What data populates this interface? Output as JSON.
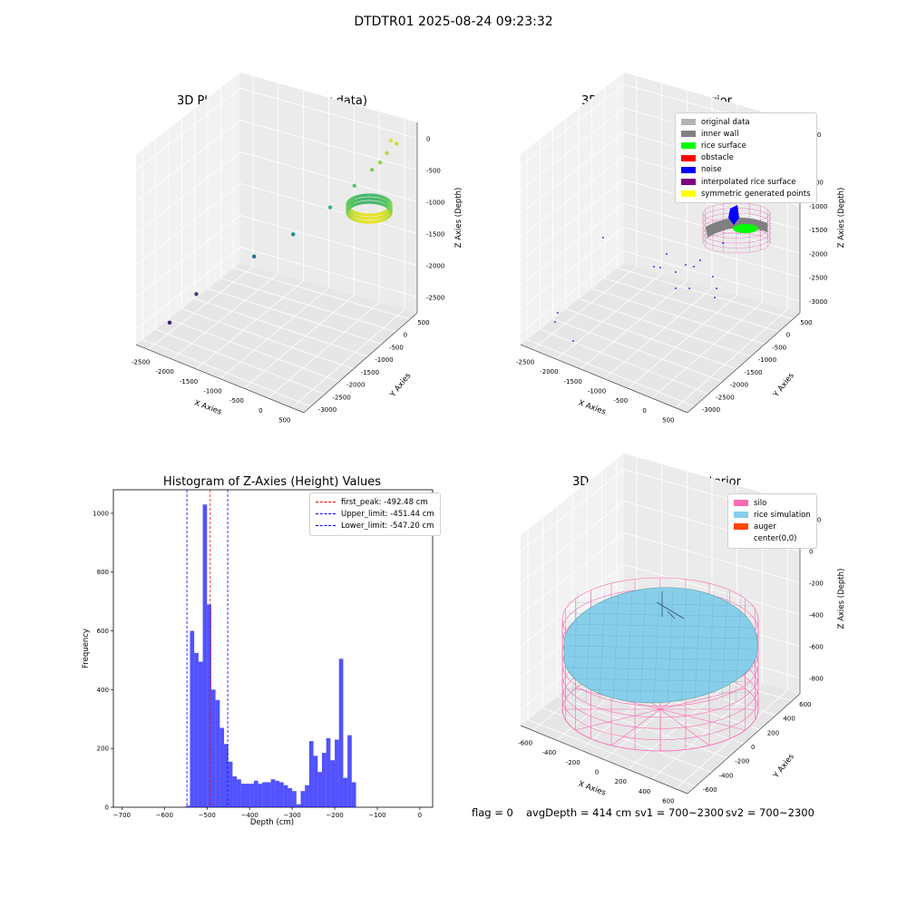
{
  "suptitle": "DTDTR01 2025-08-24 09:23:32",
  "footer": {
    "flag": "flag = 0",
    "avg": "avgDepth = 414 cm",
    "sv1": "sv1 = 700~2300",
    "sv2": "sv2 = 700~2300"
  },
  "chart_data": [
    {
      "type": "scatter",
      "subtype": "3d",
      "title": "3D Plot of Silo Interior(row data)",
      "xlabel": "X Axies",
      "ylabel": "Y Axies",
      "zlabel": "Z Axies (Depth)",
      "xticks": [
        "-2500",
        "-2000",
        "-1500",
        "-1000",
        "-500",
        "0",
        "500"
      ],
      "yticks": [
        "-3000",
        "-2500",
        "-2000",
        "-1500",
        "-1000",
        "-500",
        "0",
        "500"
      ],
      "zticks": [
        "-2500",
        "-2000",
        "-1500",
        "-1000",
        "-500",
        "0"
      ],
      "xlim": [
        -2800,
        600
      ],
      "ylim": [
        -3100,
        700
      ],
      "zlim": [
        -2900,
        100
      ],
      "colormap": "viridis (colored by depth)",
      "points": [
        {
          "x": 350,
          "y": 250,
          "z": -60
        },
        {
          "x": 420,
          "y": 320,
          "z": -120
        },
        {
          "x": 300,
          "y": 200,
          "z": -250
        },
        {
          "x": 200,
          "y": 150,
          "z": -400
        },
        {
          "x": 100,
          "y": 50,
          "z": -500
        },
        {
          "x": -100,
          "y": -200,
          "z": -700
        },
        {
          "x": -400,
          "y": -500,
          "z": -1000
        },
        {
          "x": -900,
          "y": -900,
          "z": -1400
        },
        {
          "x": -1500,
          "y": -1200,
          "z": -1800
        },
        {
          "x": -2200,
          "y": -2000,
          "z": -2300
        },
        {
          "x": -2400,
          "y": -2600,
          "z": -2600
        }
      ]
    },
    {
      "type": "scatter",
      "subtype": "3d",
      "title": "3D classify of Silo Interior",
      "xlabel": "X Axies",
      "ylabel": "Y Axies",
      "zlabel": "Z Axies (Depth)",
      "xticks": [
        "-2500",
        "-2000",
        "-1500",
        "-1000",
        "-500",
        "0",
        "500"
      ],
      "yticks": [
        "-3000",
        "-2500",
        "-2000",
        "-1500",
        "-1000",
        "-500",
        "0",
        "500"
      ],
      "zticks": [
        "-3000",
        "-2500",
        "-2000",
        "-1500",
        "-1000",
        "-500",
        "0",
        "500"
      ],
      "legend": [
        {
          "label": "original data",
          "color": "#b3b3b3"
        },
        {
          "label": "inner wall",
          "color": "#808080"
        },
        {
          "label": "rice surface",
          "color": "#00ff00"
        },
        {
          "label": "obstacle",
          "color": "#ff0000"
        },
        {
          "label": "noise",
          "color": "#0000ff"
        },
        {
          "label": "interpolated rice surface",
          "color": "#800080"
        },
        {
          "label": "symmetric generated points",
          "color": "#ffff00"
        }
      ]
    },
    {
      "type": "bar",
      "subtype": "histogram",
      "title": "Histogram of Z-Axies (Height) Values",
      "xlabel": "Depth (cm)",
      "ylabel": "Frequency",
      "xlim": [
        -720,
        30
      ],
      "ylim": [
        0,
        1080
      ],
      "xticks": [
        -700,
        -600,
        -500,
        -400,
        -300,
        -200,
        -100,
        0
      ],
      "yticks": [
        0,
        200,
        400,
        600,
        800,
        1000
      ],
      "bar_color": "#0000ff",
      "bin_edges_start": -550,
      "bin_width": 10,
      "values": [
        5,
        600,
        525,
        495,
        1030,
        690,
        400,
        365,
        270,
        215,
        155,
        105,
        95,
        80,
        80,
        80,
        90,
        80,
        85,
        85,
        95,
        90,
        85,
        75,
        65,
        55,
        10,
        55,
        75,
        225,
        175,
        120,
        185,
        235,
        160,
        230,
        505,
        100,
        245,
        85
      ],
      "reference_lines": [
        {
          "label": "first_peak: -492.48 cm",
          "x": -492.48,
          "color": "#ff0000"
        },
        {
          "label": "Upper_limit: -451.44 cm",
          "x": -451.44,
          "color": "#0000ff"
        },
        {
          "label": "Lower_limit: -547.20 cm",
          "x": -547.2,
          "color": "#0000ff"
        }
      ],
      "legend_position": "top-right"
    },
    {
      "type": "scatter",
      "subtype": "3d surface",
      "title": "3D simulation of Silo Interior",
      "xlabel": "X Axies",
      "ylabel": "Y Axies",
      "zlabel": "Z Axies (Depth)",
      "xticks": [
        "-600",
        "-400",
        "-200",
        "0",
        "200",
        "400",
        "600"
      ],
      "yticks": [
        "-600",
        "-400",
        "-200",
        "0",
        "200",
        "400",
        "600"
      ],
      "zticks": [
        "-800",
        "-600",
        "-400",
        "-200",
        "0",
        "200"
      ],
      "legend": [
        {
          "label": "silo",
          "color": "#ff69b4"
        },
        {
          "label": "rice simulation",
          "color": "#87ceeb"
        },
        {
          "label": "auger",
          "color": "#ff4500"
        },
        {
          "label": "center(0,0)",
          "color": ""
        }
      ]
    }
  ]
}
